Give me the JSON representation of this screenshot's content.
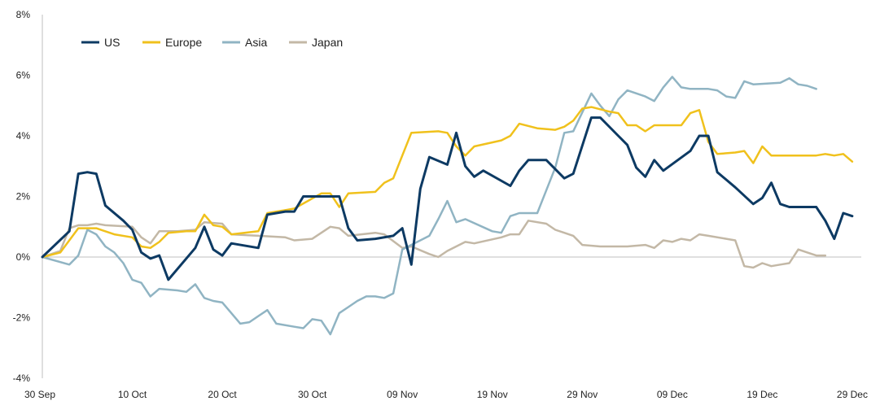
{
  "chart_data": {
    "type": "line",
    "title": "",
    "xlabel": "",
    "ylabel": "",
    "grid": false,
    "legend_position": "top-left",
    "x_tick_labels": [
      "30 Sep",
      "10 Oct",
      "20 Oct",
      "30 Oct",
      "09 Nov",
      "19 Nov",
      "29 Nov",
      "09 Dec",
      "19 Dec",
      "29 Dec"
    ],
    "x_tick_days": [
      0,
      10,
      20,
      30,
      40,
      50,
      60,
      70,
      80,
      90
    ],
    "y_ticks": [
      8,
      6,
      4,
      2,
      0,
      -2,
      -4
    ],
    "y_tick_labels": [
      "8%",
      "6%",
      "4%",
      "2%",
      "0%",
      "-2%",
      "-4%"
    ],
    "xlim_days": [
      0,
      91
    ],
    "ylim": [
      -4,
      8
    ],
    "zero_line": true,
    "series": [
      {
        "name": "US",
        "color": "#0d3a63",
        "points": [
          [
            0,
            0
          ],
          [
            3,
            0.85
          ],
          [
            4,
            2.75
          ],
          [
            5,
            2.8
          ],
          [
            6,
            2.75
          ],
          [
            7,
            1.7
          ],
          [
            9,
            1.2
          ],
          [
            10,
            0.9
          ],
          [
            11,
            0.15
          ],
          [
            12,
            -0.05
          ],
          [
            13,
            0.05
          ],
          [
            14,
            -0.75
          ],
          [
            17,
            0.3
          ],
          [
            18,
            1.0
          ],
          [
            19,
            0.25
          ],
          [
            20,
            0.05
          ],
          [
            21,
            0.45
          ],
          [
            24,
            0.3
          ],
          [
            25,
            1.4
          ],
          [
            27,
            1.5
          ],
          [
            28,
            1.5
          ],
          [
            29,
            2.0
          ],
          [
            31,
            2.0
          ],
          [
            32,
            2.0
          ],
          [
            33,
            2.0
          ],
          [
            34,
            0.95
          ],
          [
            35,
            0.55
          ],
          [
            37,
            0.6
          ],
          [
            39,
            0.7
          ],
          [
            40,
            0.95
          ],
          [
            41,
            -0.25
          ],
          [
            42,
            2.25
          ],
          [
            43,
            3.3
          ],
          [
            45,
            3.05
          ],
          [
            46,
            4.1
          ],
          [
            47,
            3.0
          ],
          [
            48,
            2.65
          ],
          [
            49,
            2.85
          ],
          [
            52,
            2.35
          ],
          [
            53,
            2.85
          ],
          [
            54,
            3.2
          ],
          [
            56,
            3.2
          ],
          [
            58,
            2.6
          ],
          [
            59,
            2.75
          ],
          [
            61,
            4.6
          ],
          [
            62,
            4.6
          ],
          [
            64,
            4.0
          ],
          [
            65,
            3.7
          ],
          [
            66,
            2.95
          ],
          [
            67,
            2.65
          ],
          [
            68,
            3.2
          ],
          [
            69,
            2.85
          ],
          [
            72,
            3.5
          ],
          [
            73,
            4.0
          ],
          [
            74,
            4.0
          ],
          [
            75,
            2.8
          ],
          [
            77,
            2.3
          ],
          [
            79,
            1.75
          ],
          [
            80,
            1.95
          ],
          [
            81,
            2.45
          ],
          [
            82,
            1.75
          ],
          [
            83,
            1.65
          ],
          [
            86,
            1.65
          ],
          [
            87,
            1.2
          ],
          [
            88,
            0.6
          ],
          [
            89,
            1.45
          ],
          [
            90,
            1.35
          ]
        ]
      },
      {
        "name": "Europe",
        "color": "#f0c11c",
        "points": [
          [
            0,
            0
          ],
          [
            2,
            0.15
          ],
          [
            4,
            0.95
          ],
          [
            6,
            0.95
          ],
          [
            8,
            0.75
          ],
          [
            10,
            0.65
          ],
          [
            11,
            0.35
          ],
          [
            12,
            0.3
          ],
          [
            13,
            0.5
          ],
          [
            14,
            0.8
          ],
          [
            16,
            0.85
          ],
          [
            17,
            0.85
          ],
          [
            18,
            1.4
          ],
          [
            19,
            1.05
          ],
          [
            20,
            1.0
          ],
          [
            21,
            0.75
          ],
          [
            24,
            0.85
          ],
          [
            25,
            1.45
          ],
          [
            26,
            1.5
          ],
          [
            27,
            1.55
          ],
          [
            28,
            1.6
          ],
          [
            31,
            2.1
          ],
          [
            32,
            2.1
          ],
          [
            33,
            1.65
          ],
          [
            34,
            2.1
          ],
          [
            37,
            2.15
          ],
          [
            38,
            2.45
          ],
          [
            39,
            2.6
          ],
          [
            40,
            3.35
          ],
          [
            41,
            4.1
          ],
          [
            44,
            4.15
          ],
          [
            45,
            4.1
          ],
          [
            46,
            3.65
          ],
          [
            47,
            3.35
          ],
          [
            48,
            3.65
          ],
          [
            51,
            3.85
          ],
          [
            52,
            4.0
          ],
          [
            53,
            4.4
          ],
          [
            55,
            4.25
          ],
          [
            57,
            4.2
          ],
          [
            58,
            4.3
          ],
          [
            59,
            4.5
          ],
          [
            60,
            4.9
          ],
          [
            61,
            4.95
          ],
          [
            63,
            4.8
          ],
          [
            64,
            4.75
          ],
          [
            65,
            4.35
          ],
          [
            66,
            4.35
          ],
          [
            67,
            4.15
          ],
          [
            68,
            4.35
          ],
          [
            70,
            4.35
          ],
          [
            71,
            4.35
          ],
          [
            72,
            4.75
          ],
          [
            73,
            4.85
          ],
          [
            74,
            3.8
          ],
          [
            75,
            3.4
          ],
          [
            77,
            3.45
          ],
          [
            78,
            3.5
          ],
          [
            79,
            3.1
          ],
          [
            80,
            3.65
          ],
          [
            81,
            3.35
          ],
          [
            84,
            3.35
          ],
          [
            86,
            3.35
          ],
          [
            87,
            3.4
          ],
          [
            88,
            3.35
          ],
          [
            89,
            3.4
          ],
          [
            90,
            3.15
          ]
        ]
      },
      {
        "name": "Asia",
        "color": "#90b4c3",
        "points": [
          [
            0,
            0
          ],
          [
            3,
            -0.25
          ],
          [
            4,
            0.05
          ],
          [
            5,
            0.9
          ],
          [
            6,
            0.75
          ],
          [
            7,
            0.35
          ],
          [
            8,
            0.15
          ],
          [
            9,
            -0.2
          ],
          [
            10,
            -0.75
          ],
          [
            11,
            -0.85
          ],
          [
            12,
            -1.3
          ],
          [
            13,
            -1.05
          ],
          [
            15,
            -1.1
          ],
          [
            16,
            -1.15
          ],
          [
            17,
            -0.9
          ],
          [
            18,
            -1.35
          ],
          [
            19,
            -1.45
          ],
          [
            20,
            -1.5
          ],
          [
            22,
            -2.2
          ],
          [
            23,
            -2.15
          ],
          [
            24,
            -1.95
          ],
          [
            25,
            -1.75
          ],
          [
            26,
            -2.2
          ],
          [
            28,
            -2.3
          ],
          [
            29,
            -2.35
          ],
          [
            30,
            -2.05
          ],
          [
            31,
            -2.1
          ],
          [
            32,
            -2.55
          ],
          [
            33,
            -1.85
          ],
          [
            34,
            -1.65
          ],
          [
            35,
            -1.45
          ],
          [
            36,
            -1.3
          ],
          [
            37,
            -1.3
          ],
          [
            38,
            -1.35
          ],
          [
            39,
            -1.2
          ],
          [
            40,
            0.25
          ],
          [
            43,
            0.7
          ],
          [
            44,
            1.25
          ],
          [
            45,
            1.85
          ],
          [
            46,
            1.15
          ],
          [
            47,
            1.25
          ],
          [
            50,
            0.85
          ],
          [
            51,
            0.8
          ],
          [
            52,
            1.35
          ],
          [
            53,
            1.45
          ],
          [
            54,
            1.45
          ],
          [
            55,
            1.45
          ],
          [
            57,
            2.95
          ],
          [
            58,
            4.1
          ],
          [
            59,
            4.15
          ],
          [
            61,
            5.4
          ],
          [
            62,
            5.0
          ],
          [
            63,
            4.65
          ],
          [
            64,
            5.2
          ],
          [
            65,
            5.5
          ],
          [
            67,
            5.3
          ],
          [
            68,
            5.15
          ],
          [
            69,
            5.6
          ],
          [
            70,
            5.95
          ],
          [
            71,
            5.6
          ],
          [
            72,
            5.55
          ],
          [
            74,
            5.55
          ],
          [
            75,
            5.5
          ],
          [
            76,
            5.3
          ],
          [
            77,
            5.25
          ],
          [
            78,
            5.8
          ],
          [
            79,
            5.7
          ],
          [
            82,
            5.75
          ],
          [
            83,
            5.9
          ],
          [
            84,
            5.7
          ],
          [
            85,
            5.65
          ],
          [
            86,
            5.55
          ]
        ]
      },
      {
        "name": "Japan",
        "color": "#c3b8a6",
        "points": [
          [
            0,
            0
          ],
          [
            2,
            0.2
          ],
          [
            3,
            0.95
          ],
          [
            4,
            1.05
          ],
          [
            5,
            1.05
          ],
          [
            6,
            1.1
          ],
          [
            7,
            1.05
          ],
          [
            10,
            1.0
          ],
          [
            11,
            0.65
          ],
          [
            12,
            0.45
          ],
          [
            13,
            0.85
          ],
          [
            15,
            0.85
          ],
          [
            17,
            0.9
          ],
          [
            18,
            1.15
          ],
          [
            20,
            1.1
          ],
          [
            21,
            0.75
          ],
          [
            24,
            0.7
          ],
          [
            27,
            0.65
          ],
          [
            28,
            0.55
          ],
          [
            30,
            0.6
          ],
          [
            31,
            0.8
          ],
          [
            32,
            1.0
          ],
          [
            33,
            0.95
          ],
          [
            34,
            0.7
          ],
          [
            37,
            0.8
          ],
          [
            38,
            0.75
          ],
          [
            40,
            0.3
          ],
          [
            41,
            0.35
          ],
          [
            43,
            0.1
          ],
          [
            44,
            0.0
          ],
          [
            45,
            0.2
          ],
          [
            47,
            0.5
          ],
          [
            48,
            0.45
          ],
          [
            51,
            0.65
          ],
          [
            52,
            0.75
          ],
          [
            53,
            0.75
          ],
          [
            54,
            1.2
          ],
          [
            56,
            1.1
          ],
          [
            57,
            0.9
          ],
          [
            58,
            0.8
          ],
          [
            59,
            0.7
          ],
          [
            60,
            0.4
          ],
          [
            62,
            0.35
          ],
          [
            65,
            0.35
          ],
          [
            67,
            0.4
          ],
          [
            68,
            0.3
          ],
          [
            69,
            0.55
          ],
          [
            70,
            0.5
          ],
          [
            71,
            0.6
          ],
          [
            72,
            0.55
          ],
          [
            73,
            0.75
          ],
          [
            74,
            0.7
          ],
          [
            76,
            0.6
          ],
          [
            77,
            0.55
          ],
          [
            78,
            -0.3
          ],
          [
            79,
            -0.35
          ],
          [
            80,
            -0.2
          ],
          [
            81,
            -0.3
          ],
          [
            82,
            -0.25
          ],
          [
            83,
            -0.2
          ],
          [
            84,
            0.25
          ],
          [
            85,
            0.15
          ],
          [
            86,
            0.05
          ],
          [
            87,
            0.05
          ]
        ]
      }
    ]
  }
}
